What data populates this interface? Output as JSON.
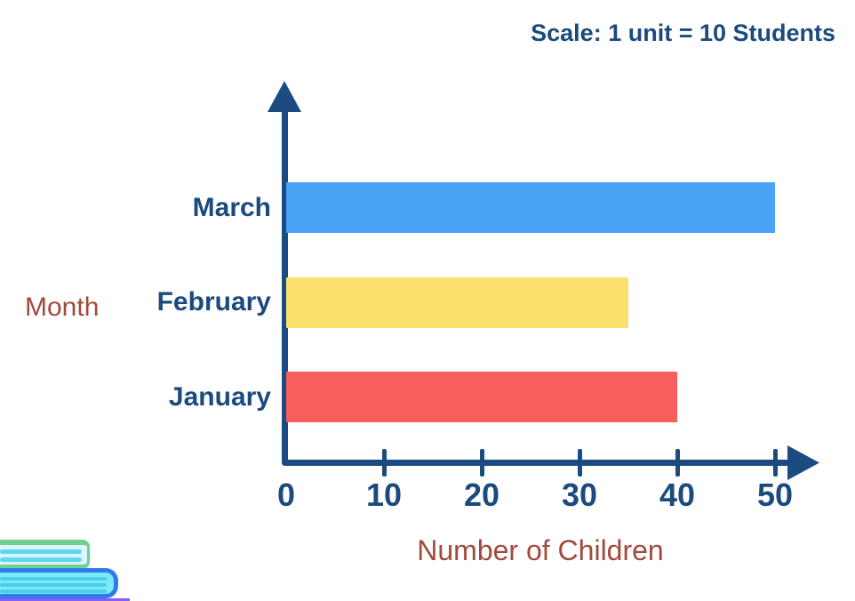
{
  "chart_data": {
    "type": "bar",
    "orientation": "horizontal",
    "annotation": "Scale: 1 unit = 10 Students",
    "xlabel": "Number of Children",
    "ylabel": "Month",
    "categories": [
      "March",
      "February",
      "January"
    ],
    "values": [
      50,
      35,
      40
    ],
    "bar_colors": [
      "#4BA3F7",
      "#FDE16E",
      "#F95E5E"
    ],
    "x_ticks": [
      0,
      10,
      20,
      30,
      40,
      50
    ],
    "xlim": [
      0,
      52
    ],
    "grid": false,
    "legend": "none",
    "axis_color": "#1C4B82",
    "category_label_color": "#1B4A7E",
    "axis_title_color": "#A04A3C",
    "unit_value": 10,
    "unit_entity": "Students"
  },
  "icons": {
    "books": "stack-of-books-illustration"
  }
}
